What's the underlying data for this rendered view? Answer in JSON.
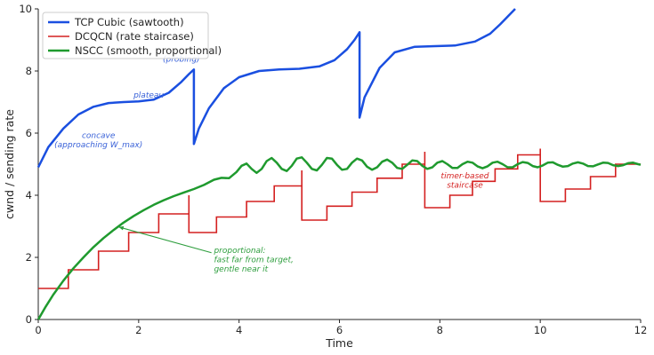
{
  "chart_data": {
    "type": "line",
    "xlabel": "Time",
    "ylabel": "cwnd / sending rate",
    "xlim": [
      0,
      12
    ],
    "ylim": [
      0,
      10
    ],
    "xticks": [
      0,
      2,
      4,
      6,
      8,
      10,
      12
    ],
    "yticks": [
      0,
      2,
      4,
      6,
      8,
      10
    ],
    "grid": false,
    "legend_position": "top-left",
    "series": [
      {
        "name": "TCP Cubic (sawtooth)",
        "color": "#1a4fe0",
        "x": [
          0.0,
          0.2,
          0.5,
          0.8,
          1.1,
          1.4,
          1.7,
          2.0,
          2.3,
          2.6,
          2.85,
          3.0,
          3.1,
          3.1,
          3.2,
          3.4,
          3.7,
          4.0,
          4.4,
          4.8,
          5.2,
          5.6,
          5.9,
          6.15,
          6.3,
          6.4,
          6.4,
          6.5,
          6.8,
          7.1,
          7.5,
          7.9,
          8.3,
          8.7,
          9.0,
          9.2,
          9.35,
          9.5
        ],
        "y": [
          4.9,
          5.55,
          6.15,
          6.6,
          6.85,
          6.97,
          7.0,
          7.02,
          7.08,
          7.3,
          7.65,
          7.9,
          8.05,
          5.65,
          6.15,
          6.8,
          7.45,
          7.8,
          8.0,
          8.05,
          8.07,
          8.15,
          8.35,
          8.7,
          9.0,
          9.25,
          6.5,
          7.15,
          8.1,
          8.6,
          8.78,
          8.8,
          8.82,
          8.95,
          9.2,
          9.5,
          9.75,
          10.0
        ]
      },
      {
        "name": "DCQCN (rate staircase)",
        "color": "#d42020",
        "x": [
          0.0,
          0.6,
          0.6,
          1.2,
          1.2,
          1.8,
          1.8,
          2.4,
          2.4,
          3.0,
          3.0,
          3.0,
          3.0,
          3.55,
          3.55,
          4.15,
          4.15,
          4.7,
          4.7,
          5.25,
          5.25,
          5.25,
          5.25,
          5.75,
          5.75,
          6.25,
          6.25,
          6.75,
          6.75,
          7.25,
          7.25,
          7.7,
          7.7,
          7.7,
          7.7,
          8.2,
          8.2,
          8.65,
          8.65,
          9.1,
          9.1,
          9.55,
          9.55,
          10.0,
          10.0,
          10.0,
          10.0,
          10.5,
          10.5,
          11.0,
          11.0,
          11.5,
          11.5,
          12.0
        ],
        "y": [
          1.0,
          1.0,
          1.6,
          1.6,
          2.2,
          2.2,
          2.8,
          2.8,
          3.4,
          3.4,
          4.0,
          4.0,
          2.8,
          2.8,
          3.3,
          3.3,
          3.8,
          3.8,
          4.3,
          4.3,
          4.8,
          4.8,
          3.2,
          3.2,
          3.65,
          3.65,
          4.1,
          4.1,
          4.55,
          4.55,
          5.0,
          5.0,
          5.4,
          5.4,
          3.6,
          3.6,
          4.0,
          4.0,
          4.45,
          4.45,
          4.85,
          4.85,
          5.3,
          5.3,
          5.5,
          5.5,
          3.8,
          3.8,
          4.2,
          4.2,
          4.6,
          4.6,
          5.0,
          5.0
        ]
      },
      {
        "name": "NSCC (smooth, proportional)",
        "color": "#1f9a2e",
        "x": [
          0.0,
          0.15,
          0.3,
          0.5,
          0.7,
          0.9,
          1.1,
          1.3,
          1.5,
          1.7,
          1.9,
          2.1,
          2.3,
          2.5,
          2.7,
          2.9,
          3.1,
          3.3,
          3.5,
          3.65,
          3.8,
          3.95,
          4.05,
          4.15,
          4.25,
          4.35,
          4.45,
          4.55,
          4.65,
          4.75,
          4.85,
          4.95,
          5.05,
          5.15,
          5.25,
          5.35,
          5.45,
          5.55,
          5.65,
          5.75,
          5.85,
          5.95,
          6.05,
          6.15,
          6.25,
          6.35,
          6.45,
          6.55,
          6.65,
          6.75,
          6.85,
          6.95,
          7.05,
          7.15,
          7.25,
          7.35,
          7.45,
          7.55,
          7.65,
          7.75,
          7.85,
          7.95,
          8.05,
          8.15,
          8.25,
          8.35,
          8.45,
          8.55,
          8.65,
          8.75,
          8.85,
          8.95,
          9.05,
          9.15,
          9.25,
          9.35,
          9.45,
          9.55,
          9.65,
          9.75,
          9.85,
          9.95,
          10.05,
          10.15,
          10.25,
          10.35,
          10.45,
          10.55,
          10.65,
          10.75,
          10.85,
          10.95,
          11.05,
          11.15,
          11.25,
          11.35,
          11.45,
          11.55,
          11.65,
          11.75,
          11.85,
          11.95,
          12.0
        ],
        "y": [
          0.0,
          0.42,
          0.8,
          1.25,
          1.65,
          2.0,
          2.33,
          2.62,
          2.88,
          3.12,
          3.33,
          3.52,
          3.69,
          3.84,
          3.97,
          4.09,
          4.2,
          4.33,
          4.5,
          4.56,
          4.55,
          4.75,
          4.95,
          5.02,
          4.85,
          4.72,
          4.85,
          5.1,
          5.2,
          5.05,
          4.85,
          4.78,
          4.95,
          5.18,
          5.22,
          5.05,
          4.85,
          4.8,
          4.98,
          5.2,
          5.18,
          4.98,
          4.82,
          4.85,
          5.05,
          5.18,
          5.12,
          4.92,
          4.82,
          4.9,
          5.08,
          5.15,
          5.05,
          4.88,
          4.85,
          4.98,
          5.12,
          5.1,
          4.95,
          4.85,
          4.9,
          5.05,
          5.1,
          5.0,
          4.88,
          4.88,
          5.0,
          5.08,
          5.05,
          4.93,
          4.87,
          4.93,
          5.05,
          5.08,
          5.0,
          4.9,
          4.9,
          5.0,
          5.07,
          5.04,
          4.94,
          4.9,
          4.96,
          5.05,
          5.06,
          4.98,
          4.92,
          4.94,
          5.02,
          5.06,
          5.02,
          4.94,
          4.93,
          4.99,
          5.05,
          5.04,
          4.97,
          4.94,
          4.97,
          5.03,
          5.05,
          5.0,
          4.98
        ]
      }
    ],
    "annotations": [
      {
        "text": "(probing)",
        "x": 2.85,
        "y": 8.3,
        "color": "#3a62d8"
      },
      {
        "text": "plateau",
        "x": 2.2,
        "y": 7.15,
        "color": "#3a62d8"
      },
      {
        "text": "concave",
        "x": 1.2,
        "y": 5.85,
        "color": "#3a62d8"
      },
      {
        "text": "(approaching W_max)",
        "x": 1.2,
        "y": 5.55,
        "color": "#3a62d8"
      },
      {
        "text": "timer-based",
        "x": 8.5,
        "y": 4.55,
        "color": "#d42020"
      },
      {
        "text": "staircase",
        "x": 8.5,
        "y": 4.25,
        "color": "#d42020"
      },
      {
        "text": "proportional:",
        "x": 3.5,
        "y": 2.15,
        "color": "#2e9e3e"
      },
      {
        "text": "fast far from target,",
        "x": 3.5,
        "y": 1.85,
        "color": "#2e9e3e"
      },
      {
        "text": "gentle near it",
        "x": 3.5,
        "y": 1.55,
        "color": "#2e9e3e"
      }
    ],
    "arrow": {
      "from": [
        3.45,
        2.15
      ],
      "to": [
        1.6,
        2.98
      ],
      "color": "#2e9e3e"
    }
  }
}
